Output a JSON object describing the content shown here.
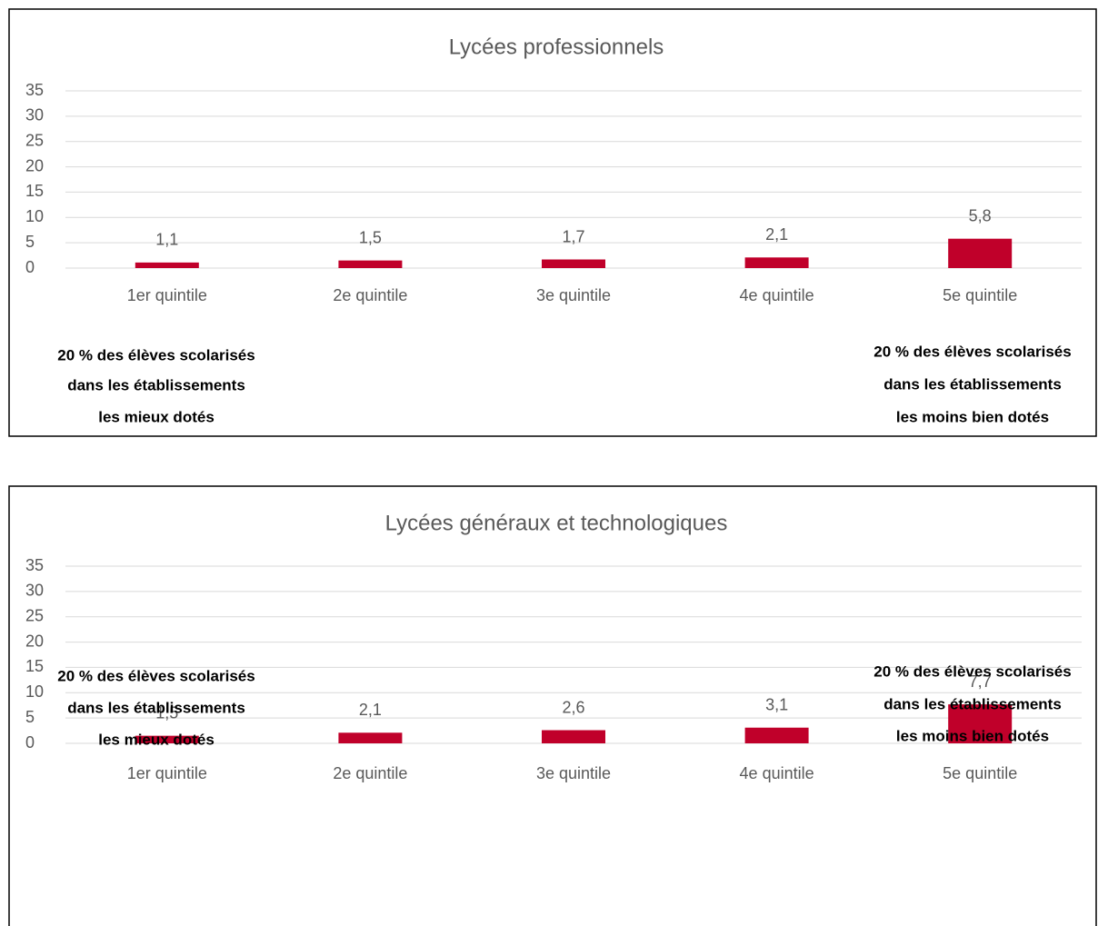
{
  "chart_data": [
    {
      "type": "bar",
      "title": "Lycées professionnels",
      "categories": [
        "1er quintile",
        "2e quintile",
        "3e quintile",
        "4e quintile",
        "5e quintile"
      ],
      "values": [
        1.1,
        1.5,
        1.7,
        2.1,
        5.8
      ],
      "value_labels": [
        "1,1",
        "1,5",
        "1,7",
        "2,1",
        "5,8"
      ],
      "color": "#c0002a",
      "ylim": [
        0,
        35
      ],
      "yticks": [
        0,
        5,
        10,
        15,
        20,
        25,
        30,
        35
      ],
      "grid": true,
      "annotations": [
        {
          "lines": [
            "20 % des élèves scolarisés",
            "dans les établissements",
            "les mieux dotés"
          ]
        },
        {
          "lines": [
            "20 % des élèves scolarisés",
            "dans les établissements",
            "les moins bien dotés"
          ]
        }
      ]
    },
    {
      "type": "bar",
      "title": "Lycées généraux et technologiques",
      "categories": [
        "1er quintile",
        "2e quintile",
        "3e quintile",
        "4e quintile",
        "5e quintile"
      ],
      "values": [
        1.5,
        2.1,
        2.6,
        3.1,
        7.7
      ],
      "value_labels": [
        "1,5",
        "2,1",
        "2,6",
        "3,1",
        "7,7"
      ],
      "color": "#c0002a",
      "ylim": [
        0,
        35
      ],
      "yticks": [
        0,
        5,
        10,
        15,
        20,
        25,
        30,
        35
      ],
      "grid": true,
      "annotations": [
        {
          "lines": [
            "20 % des élèves scolarisés",
            "dans les établissements",
            "les mieux dotés"
          ]
        },
        {
          "lines": [
            "20 % des élèves scolarisés",
            "dans les établissements",
            "les moins bien dotés"
          ]
        }
      ]
    }
  ]
}
